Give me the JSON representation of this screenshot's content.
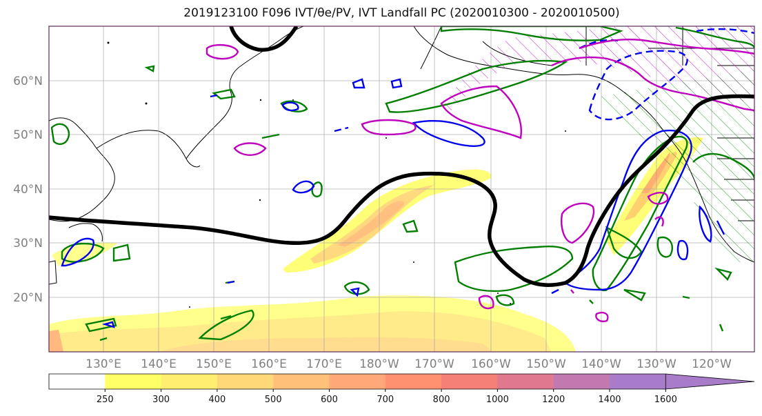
{
  "title": "2019123100 F096 IVT/θe/PV, IVT Landfall PC (2020010300 - 2020010500)",
  "lat_labels": [
    "60°N",
    "50°N",
    "40°N",
    "30°N",
    "20°N"
  ],
  "lon_labels": [
    "130°E",
    "140°E",
    "150°E",
    "160°E",
    "170°E",
    "180°W",
    "170°W",
    "160°W",
    "150°W",
    "140°W",
    "130°W",
    "120°W"
  ],
  "colorbar": {
    "ticks": [
      "250",
      "300",
      "400",
      "500",
      "600",
      "700",
      "800",
      "1000",
      "1200",
      "1400",
      "1600"
    ],
    "colors": [
      "#ffffff",
      "#ffff66",
      "#ffee70",
      "#ffd878",
      "#ffc07a",
      "#ffa878",
      "#ff9070",
      "#f58078",
      "#e07890",
      "#c07ab0",
      "#a87cc8"
    ]
  },
  "colors": {
    "ivt_contour_green": "#007f00",
    "pv_contour_blue": "#0000ee",
    "theta_contour_magenta": "#bf00bf",
    "landfall_line": "#000000",
    "coastline": "#000000",
    "gridline": "#a0a0a0"
  }
}
